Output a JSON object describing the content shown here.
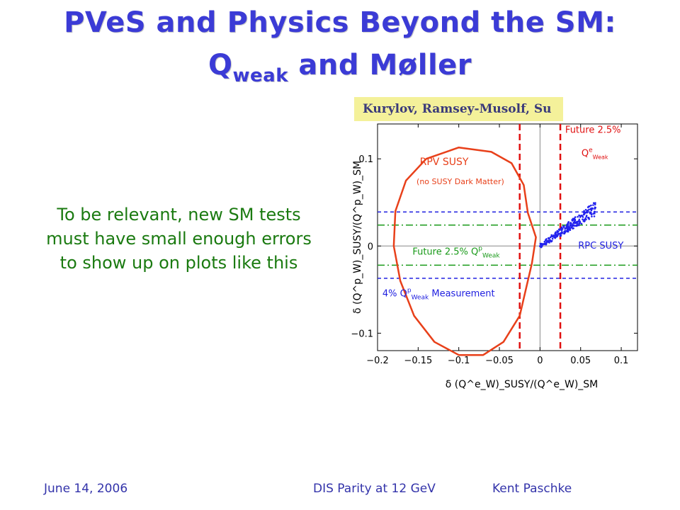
{
  "slide": {
    "title_line1": "PVeS and Physics Beyond the SM:",
    "title_line2_main": "Q",
    "title_line2_sub": "weak",
    "title_line2_rest": " and Møller",
    "body_text": "To be relevant, new SM tests must have small enough errors to show up on plots like this",
    "credit": "Kurylov, Ramsey-Musolf, Su"
  },
  "footer": {
    "date": "June 14, 2006",
    "event": "DIS Parity at 12 GeV",
    "author": "Kent Paschke"
  },
  "colors": {
    "title": "#3b3bd6",
    "body_text": "#1a7a10",
    "credit_bg": "#f4f19a",
    "rpv_contour": "#e8401a",
    "future_qe_lines": "#e01010",
    "future_qp_lines": "#1a9a1a",
    "measurement_lines": "#2020e0",
    "rpc_points": "#2222ee"
  },
  "chart_data": {
    "type": "scatter",
    "xlabel": "δ (Q^e_W)_SUSY/(Q^e_W)_SM",
    "ylabel": "δ (Q^p_W)_SUSY/(Q^p_W)_SM",
    "xlim": [
      -0.2,
      0.12
    ],
    "ylim": [
      -0.12,
      0.14
    ],
    "x_ticks": [
      "−0.2",
      "−0.15",
      "−0.1",
      "−0.05",
      "0",
      "0.05",
      "0.1"
    ],
    "y_ticks": [
      "−0.1",
      "0",
      "0.1"
    ],
    "annotations": {
      "rpv_title": "RPV SUSY",
      "rpv_sub": "(no SUSY Dark Matter)",
      "future_qe": "Future 2.5%",
      "future_qe_sym": "Q",
      "future_qe_sup": "e",
      "future_qe_sub": "Weak",
      "rpc": "RPC SUSY",
      "future_qp": "Future 2.5% Q",
      "future_qp_sup": "p",
      "future_qp_sub": "Weak",
      "measurement_pre": "4% Q",
      "measurement_sup": "p",
      "measurement_sub": "Weak",
      "measurement_post": " Measurement"
    },
    "rpv_contour": [
      [
        -0.015,
        0.038
      ],
      [
        -0.02,
        0.07
      ],
      [
        -0.035,
        0.095
      ],
      [
        -0.06,
        0.108
      ],
      [
        -0.1,
        0.113
      ],
      [
        -0.14,
        0.1
      ],
      [
        -0.165,
        0.075
      ],
      [
        -0.178,
        0.04
      ],
      [
        -0.18,
        0.0
      ],
      [
        -0.172,
        -0.04
      ],
      [
        -0.155,
        -0.08
      ],
      [
        -0.13,
        -0.11
      ],
      [
        -0.1,
        -0.125
      ],
      [
        -0.07,
        -0.125
      ],
      [
        -0.045,
        -0.11
      ],
      [
        -0.025,
        -0.08
      ],
      [
        -0.01,
        -0.02
      ],
      [
        -0.005,
        0.01
      ],
      [
        -0.015,
        0.038
      ]
    ],
    "future_qe_band": [
      -0.025,
      0.025
    ],
    "future_qp_band": [
      -0.022,
      0.024
    ],
    "measurement_band": [
      -0.037,
      0.039
    ],
    "rpc_region": {
      "x_range": [
        0.0,
        0.07
      ],
      "slope": 0.63,
      "spread": 0.006
    }
  }
}
